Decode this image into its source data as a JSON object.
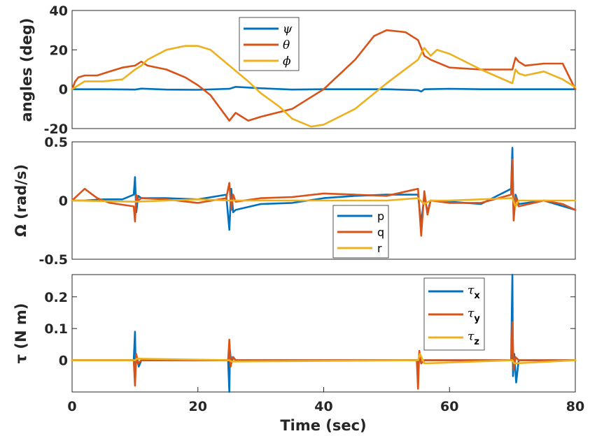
{
  "chart_data": [
    {
      "type": "line",
      "ylabel": "angles (deg)",
      "xlim": [
        0,
        80
      ],
      "ylim": [
        -20,
        40
      ],
      "yticks": [
        -20,
        0,
        20,
        40
      ],
      "ytick_labels": [
        "-20",
        "0",
        "20",
        "40"
      ],
      "legend_position": "top-center",
      "series": [
        {
          "name": "ψ",
          "color": "#0072BD",
          "x": [
            0,
            5,
            10,
            11,
            15,
            20,
            25,
            26,
            27,
            30,
            35,
            40,
            45,
            50,
            55,
            55.5,
            56,
            60,
            65,
            70,
            75,
            80
          ],
          "y": [
            0,
            0,
            -0.2,
            0.3,
            -0.2,
            -0.3,
            0.2,
            1.2,
            1.0,
            0.5,
            -0.2,
            0,
            0,
            0,
            -0.5,
            -1.2,
            0,
            0.2,
            0,
            0,
            0,
            0
          ]
        },
        {
          "name": "θ",
          "color": "#D95319",
          "x": [
            0,
            0.5,
            1,
            2,
            4,
            6,
            8,
            10,
            11,
            12,
            15,
            18,
            20,
            22,
            25,
            26,
            27,
            28,
            30,
            35,
            40,
            45,
            48,
            50,
            53,
            55,
            56,
            57,
            60,
            65,
            70,
            70.5,
            71,
            72,
            75,
            78,
            80
          ],
          "y": [
            0,
            4,
            6,
            7,
            7,
            9,
            11,
            12,
            14,
            12,
            10,
            6,
            2,
            -3,
            -16,
            -12,
            -14,
            -16,
            -14,
            -10,
            0,
            15,
            27,
            30,
            29,
            25,
            17,
            15,
            11,
            10,
            10,
            16,
            14,
            12,
            13,
            13,
            0
          ]
        },
        {
          "name": "ϕ",
          "color": "#EDB120",
          "x": [
            0,
            2,
            5,
            8,
            10,
            11,
            12,
            15,
            18,
            20,
            22,
            25,
            28,
            30,
            33,
            35,
            38,
            40,
            45,
            50,
            55,
            56,
            57,
            58,
            60,
            65,
            70,
            70.5,
            71,
            72,
            75,
            78,
            80
          ],
          "y": [
            0,
            4,
            4,
            5,
            10,
            12,
            15,
            20,
            22,
            22,
            20,
            12,
            4,
            -2,
            -9,
            -15,
            -19,
            -18,
            -10,
            3,
            15,
            21,
            17,
            20,
            18,
            10,
            3,
            10,
            8,
            7,
            9,
            5,
            1
          ]
        }
      ]
    },
    {
      "type": "line",
      "ylabel": "Ω (rad/s)",
      "xlim": [
        0,
        80
      ],
      "ylim": [
        -0.5,
        0.5
      ],
      "yticks": [
        -0.5,
        0,
        0.5
      ],
      "ytick_labels": [
        "-0.5",
        "0",
        "0.5"
      ],
      "legend_position": "bottom-center",
      "series": [
        {
          "name": "p",
          "color": "#0072BD",
          "x": [
            0,
            2,
            5,
            8,
            9.8,
            10,
            10.2,
            10.5,
            11,
            15,
            20,
            24.5,
            25,
            25.3,
            25.6,
            26,
            30,
            35,
            40,
            45,
            50,
            55,
            55.5,
            56,
            56.5,
            57,
            60,
            65,
            69.8,
            70,
            70.2,
            70.5,
            71,
            75,
            80
          ],
          "y": [
            0,
            0,
            0.01,
            0.01,
            0.05,
            0.2,
            -0.1,
            0.04,
            0.02,
            0.02,
            0.01,
            0.05,
            -0.25,
            0.1,
            -0.1,
            -0.08,
            -0.03,
            -0.02,
            0.02,
            0.04,
            0.05,
            0.05,
            -0.2,
            0.05,
            -0.1,
            0,
            -0.01,
            -0.03,
            0.1,
            0.45,
            -0.15,
            0.05,
            -0.03,
            0,
            -0.08
          ]
        },
        {
          "name": "q",
          "color": "#D95319",
          "x": [
            0,
            1,
            2,
            4,
            6,
            9.8,
            10,
            10.2,
            10.5,
            11,
            15,
            20,
            24.5,
            25,
            25.3,
            25.6,
            26,
            30,
            35,
            40,
            45,
            50,
            55,
            55.5,
            56,
            56.5,
            57,
            60,
            65,
            69.8,
            70,
            70.2,
            70.5,
            71,
            75,
            78,
            80
          ],
          "y": [
            0,
            0.05,
            0.1,
            0.02,
            -0.02,
            -0.05,
            -0.18,
            0.05,
            0,
            0.02,
            0.01,
            -0.02,
            0.02,
            0.15,
            -0.08,
            0.05,
            -0.01,
            0.02,
            0.03,
            0.06,
            0.05,
            0.04,
            0.1,
            -0.3,
            0.08,
            -0.12,
            0,
            -0.02,
            -0.02,
            0.05,
            0.35,
            -0.17,
            0.03,
            -0.05,
            0,
            -0.03,
            -0.08
          ]
        },
        {
          "name": "r",
          "color": "#EDB120",
          "x": [
            0,
            10,
            20,
            25,
            30,
            40,
            50,
            55,
            56,
            57,
            60,
            70,
            70.5,
            71,
            75,
            80
          ],
          "y": [
            0,
            -0.01,
            0.01,
            0,
            0,
            0,
            0,
            0.02,
            -0.03,
            0,
            0,
            0.02,
            -0.05,
            0,
            0,
            0
          ]
        }
      ]
    },
    {
      "type": "line",
      "ylabel": "τ (N m)",
      "xlabel": "Time (sec)",
      "xlim": [
        0,
        80
      ],
      "ylim": [
        -0.1,
        0.27
      ],
      "xticks": [
        0,
        20,
        40,
        60,
        80
      ],
      "xtick_labels": [
        "0",
        "20",
        "40",
        "60",
        "80"
      ],
      "yticks": [
        0,
        0.1,
        0.2
      ],
      "ytick_labels": [
        "0",
        "0.1",
        "0.2"
      ],
      "legend_position": "top-right",
      "series": [
        {
          "name": "τx",
          "label_main": "τ",
          "label_sub": "x",
          "color": "#0072BD",
          "x": [
            0,
            9.8,
            10,
            10.1,
            10.3,
            10.6,
            11,
            24.8,
            25,
            25.1,
            25.3,
            25.6,
            26,
            54.8,
            55,
            55.2,
            55.5,
            56,
            69.8,
            70,
            70.1,
            70.3,
            70.6,
            71,
            80
          ],
          "y": [
            0,
            0,
            0.09,
            -0.02,
            0.01,
            -0.02,
            0,
            0,
            -0.1,
            0.03,
            -0.01,
            0.01,
            0,
            0,
            -0.02,
            0.02,
            -0.01,
            0,
            0,
            0.27,
            -0.05,
            0.02,
            -0.07,
            0,
            0
          ]
        },
        {
          "name": "τy",
          "label_main": "τ",
          "label_sub": "y",
          "color": "#D95319",
          "x": [
            0,
            9.8,
            10,
            10.2,
            10.5,
            11,
            24.8,
            25,
            25.2,
            25.5,
            26,
            54.8,
            55,
            55.2,
            55.5,
            56,
            69.8,
            70,
            70.2,
            70.5,
            71,
            80
          ],
          "y": [
            0,
            0,
            -0.08,
            0.02,
            -0.01,
            0,
            0,
            0.065,
            -0.02,
            0.01,
            0,
            0,
            -0.09,
            0.03,
            -0.01,
            0,
            0,
            0.12,
            -0.03,
            0.01,
            0,
            0
          ]
        },
        {
          "name": "τz",
          "label_main": "τ",
          "label_sub": "z",
          "color": "#EDB120",
          "x": [
            0,
            10,
            10.3,
            25,
            25.3,
            55,
            55.3,
            56,
            70,
            70.3,
            80
          ],
          "y": [
            0,
            0,
            0.005,
            0,
            -0.004,
            0,
            0.02,
            -0.01,
            0,
            -0.01,
            0
          ]
        }
      ]
    }
  ]
}
